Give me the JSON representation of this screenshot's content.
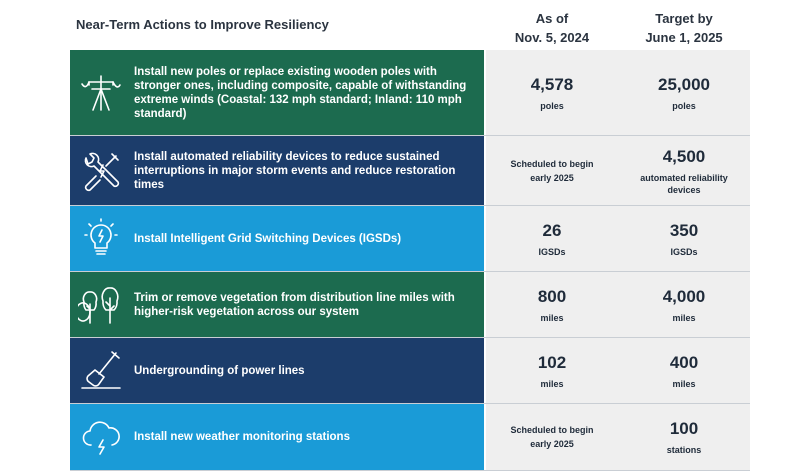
{
  "header": {
    "title": "Near-Term Actions to Improve Resiliency",
    "col1_line1": "As of",
    "col1_line2": "Nov. 5, 2024",
    "col2_line1": "Target by",
    "col2_line2": "June 1, 2025"
  },
  "rows": [
    {
      "icon": "utility-pole-icon",
      "color": "#1c6b4f",
      "action": "Install new poles or replace existing wooden poles with stronger ones, including composite, capable of withstanding extreme winds (Coastal: 132 mph standard; Inland: 110 mph standard)",
      "current_value": "4,578",
      "current_unit": "poles",
      "target_value": "25,000",
      "target_unit": "poles"
    },
    {
      "icon": "tools-icon",
      "color": "#1c3d6b",
      "action": "Install automated reliability devices to reduce sustained interruptions in major storm events and reduce restoration times",
      "current_note_line1": "Scheduled to begin",
      "current_note_line2": "early 2025",
      "target_value": "4,500",
      "target_unit_line1": "automated reliability",
      "target_unit_line2": "devices"
    },
    {
      "icon": "lightbulb-icon",
      "color": "#1a9bd7",
      "action": "Install Intelligent Grid Switching Devices (IGSDs)",
      "current_value": "26",
      "current_unit": "IGSDs",
      "target_value": "350",
      "target_unit": "IGSDs"
    },
    {
      "icon": "trees-icon",
      "color": "#1c6b4f",
      "action": "Trim or remove vegetation from distribution line miles with higher-risk vegetation across our system",
      "current_value": "800",
      "current_unit": "miles",
      "target_value": "4,000",
      "target_unit": "miles"
    },
    {
      "icon": "shovel-icon",
      "color": "#1c3d6b",
      "action": "Undergrounding of power lines",
      "current_value": "102",
      "current_unit": "miles",
      "target_value": "400",
      "target_unit": "miles"
    },
    {
      "icon": "storm-cloud-icon",
      "color": "#1a9bd7",
      "action": "Install new weather monitoring stations",
      "current_note_line1": "Scheduled to begin",
      "current_note_line2": "early 2025",
      "target_value": "100",
      "target_unit": "stations"
    }
  ]
}
